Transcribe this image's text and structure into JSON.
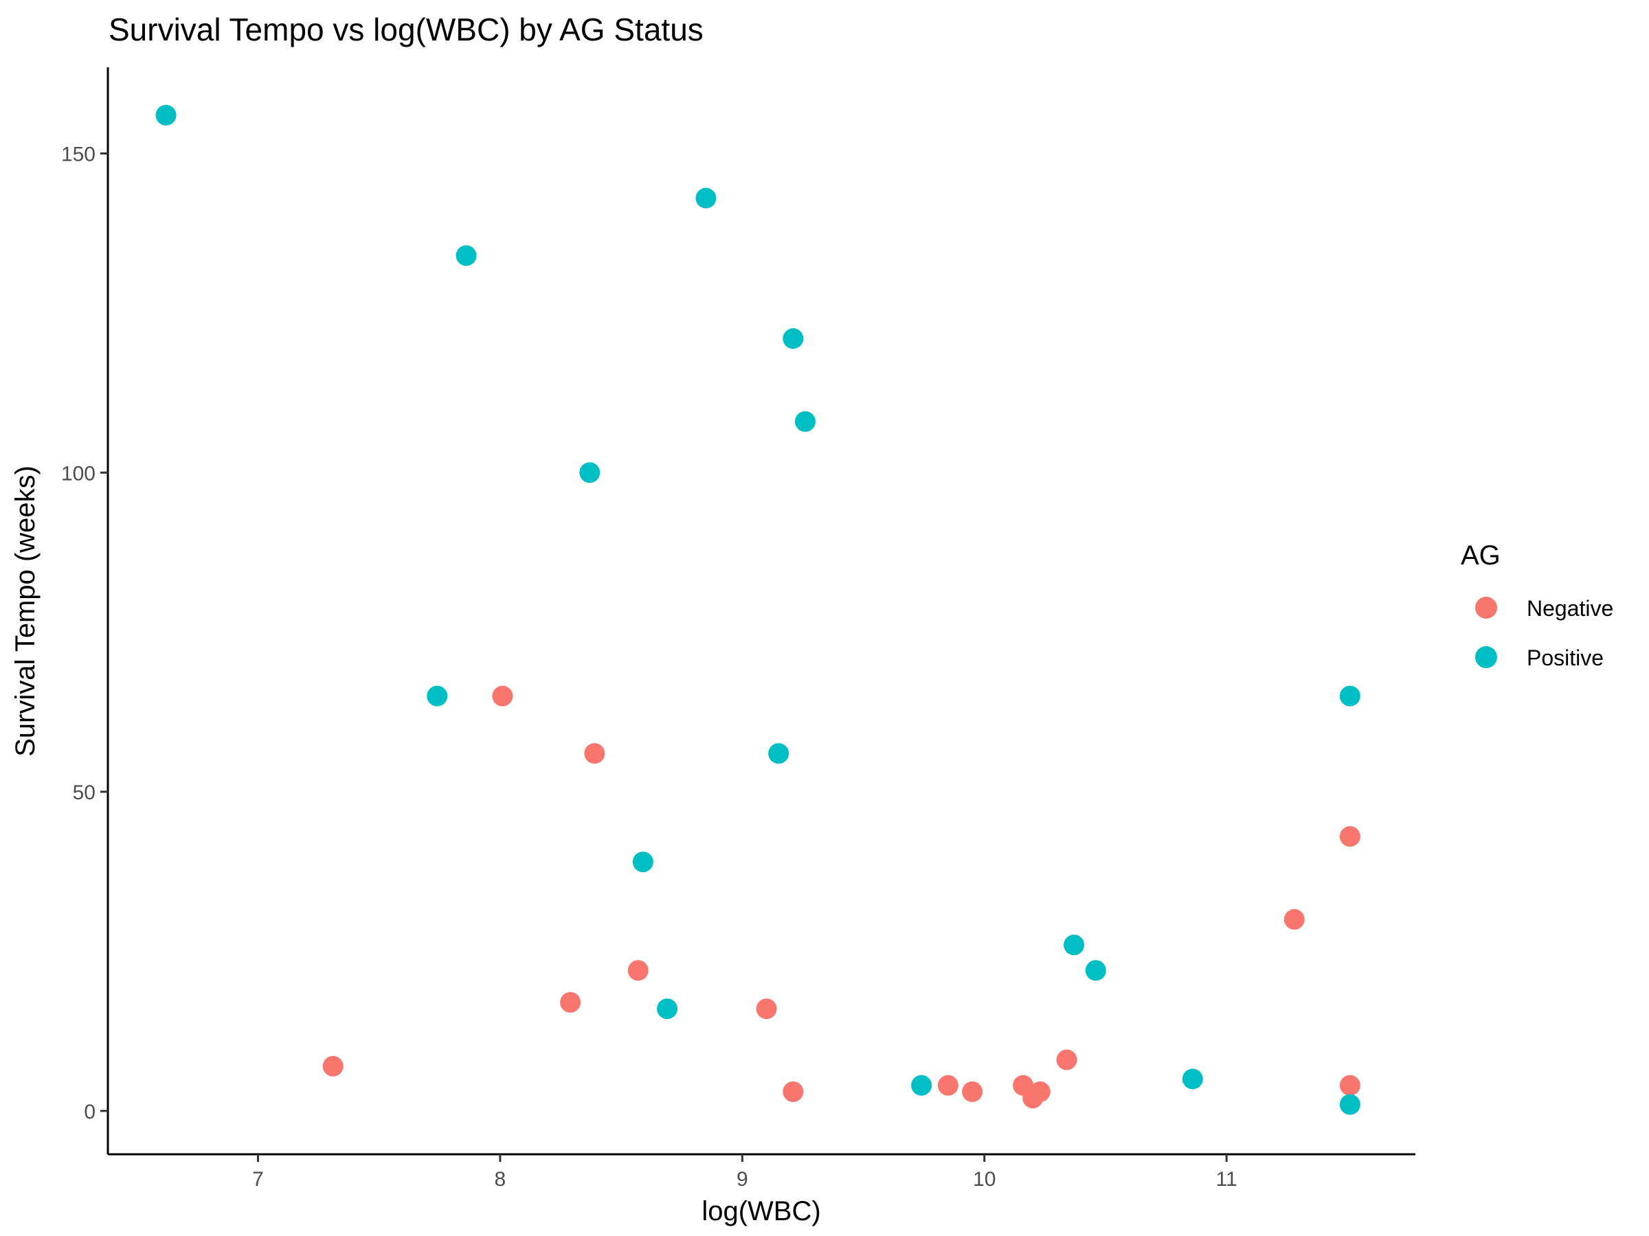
{
  "chart_data": {
    "type": "scatter",
    "title": "Survival Tempo vs log(WBC) by AG Status",
    "xlabel": "log(WBC)",
    "ylabel": "Survival Tempo (weeks)",
    "xlim": [
      6.38,
      11.78
    ],
    "ylim": [
      -6.8,
      163.5
    ],
    "x_ticks": [
      7,
      8,
      9,
      10,
      11
    ],
    "y_ticks": [
      0,
      50,
      100,
      150
    ],
    "grid": false,
    "legend": {
      "title": "AG",
      "position": "right"
    },
    "series": [
      {
        "name": "Negative",
        "color": "#F8766D",
        "points": [
          [
            7.31,
            7
          ],
          [
            8.01,
            65
          ],
          [
            8.39,
            56
          ],
          [
            8.29,
            17
          ],
          [
            8.57,
            22
          ],
          [
            9.1,
            16
          ],
          [
            9.21,
            3
          ],
          [
            9.85,
            4
          ],
          [
            9.95,
            3
          ],
          [
            10.16,
            4
          ],
          [
            10.2,
            2
          ],
          [
            10.23,
            3
          ],
          [
            10.34,
            8
          ],
          [
            11.28,
            30
          ],
          [
            11.51,
            43
          ],
          [
            11.51,
            4
          ]
        ]
      },
      {
        "name": "Positive",
        "color": "#00BFC4",
        "points": [
          [
            6.62,
            156
          ],
          [
            7.86,
            134
          ],
          [
            8.85,
            143
          ],
          [
            9.21,
            121
          ],
          [
            9.26,
            108
          ],
          [
            8.37,
            100
          ],
          [
            7.74,
            65
          ],
          [
            9.15,
            56
          ],
          [
            8.59,
            39
          ],
          [
            8.69,
            16
          ],
          [
            9.74,
            4
          ],
          [
            10.37,
            26
          ],
          [
            10.46,
            22
          ],
          [
            10.86,
            5
          ],
          [
            11.51,
            65
          ],
          [
            11.51,
            1
          ]
        ]
      }
    ]
  }
}
